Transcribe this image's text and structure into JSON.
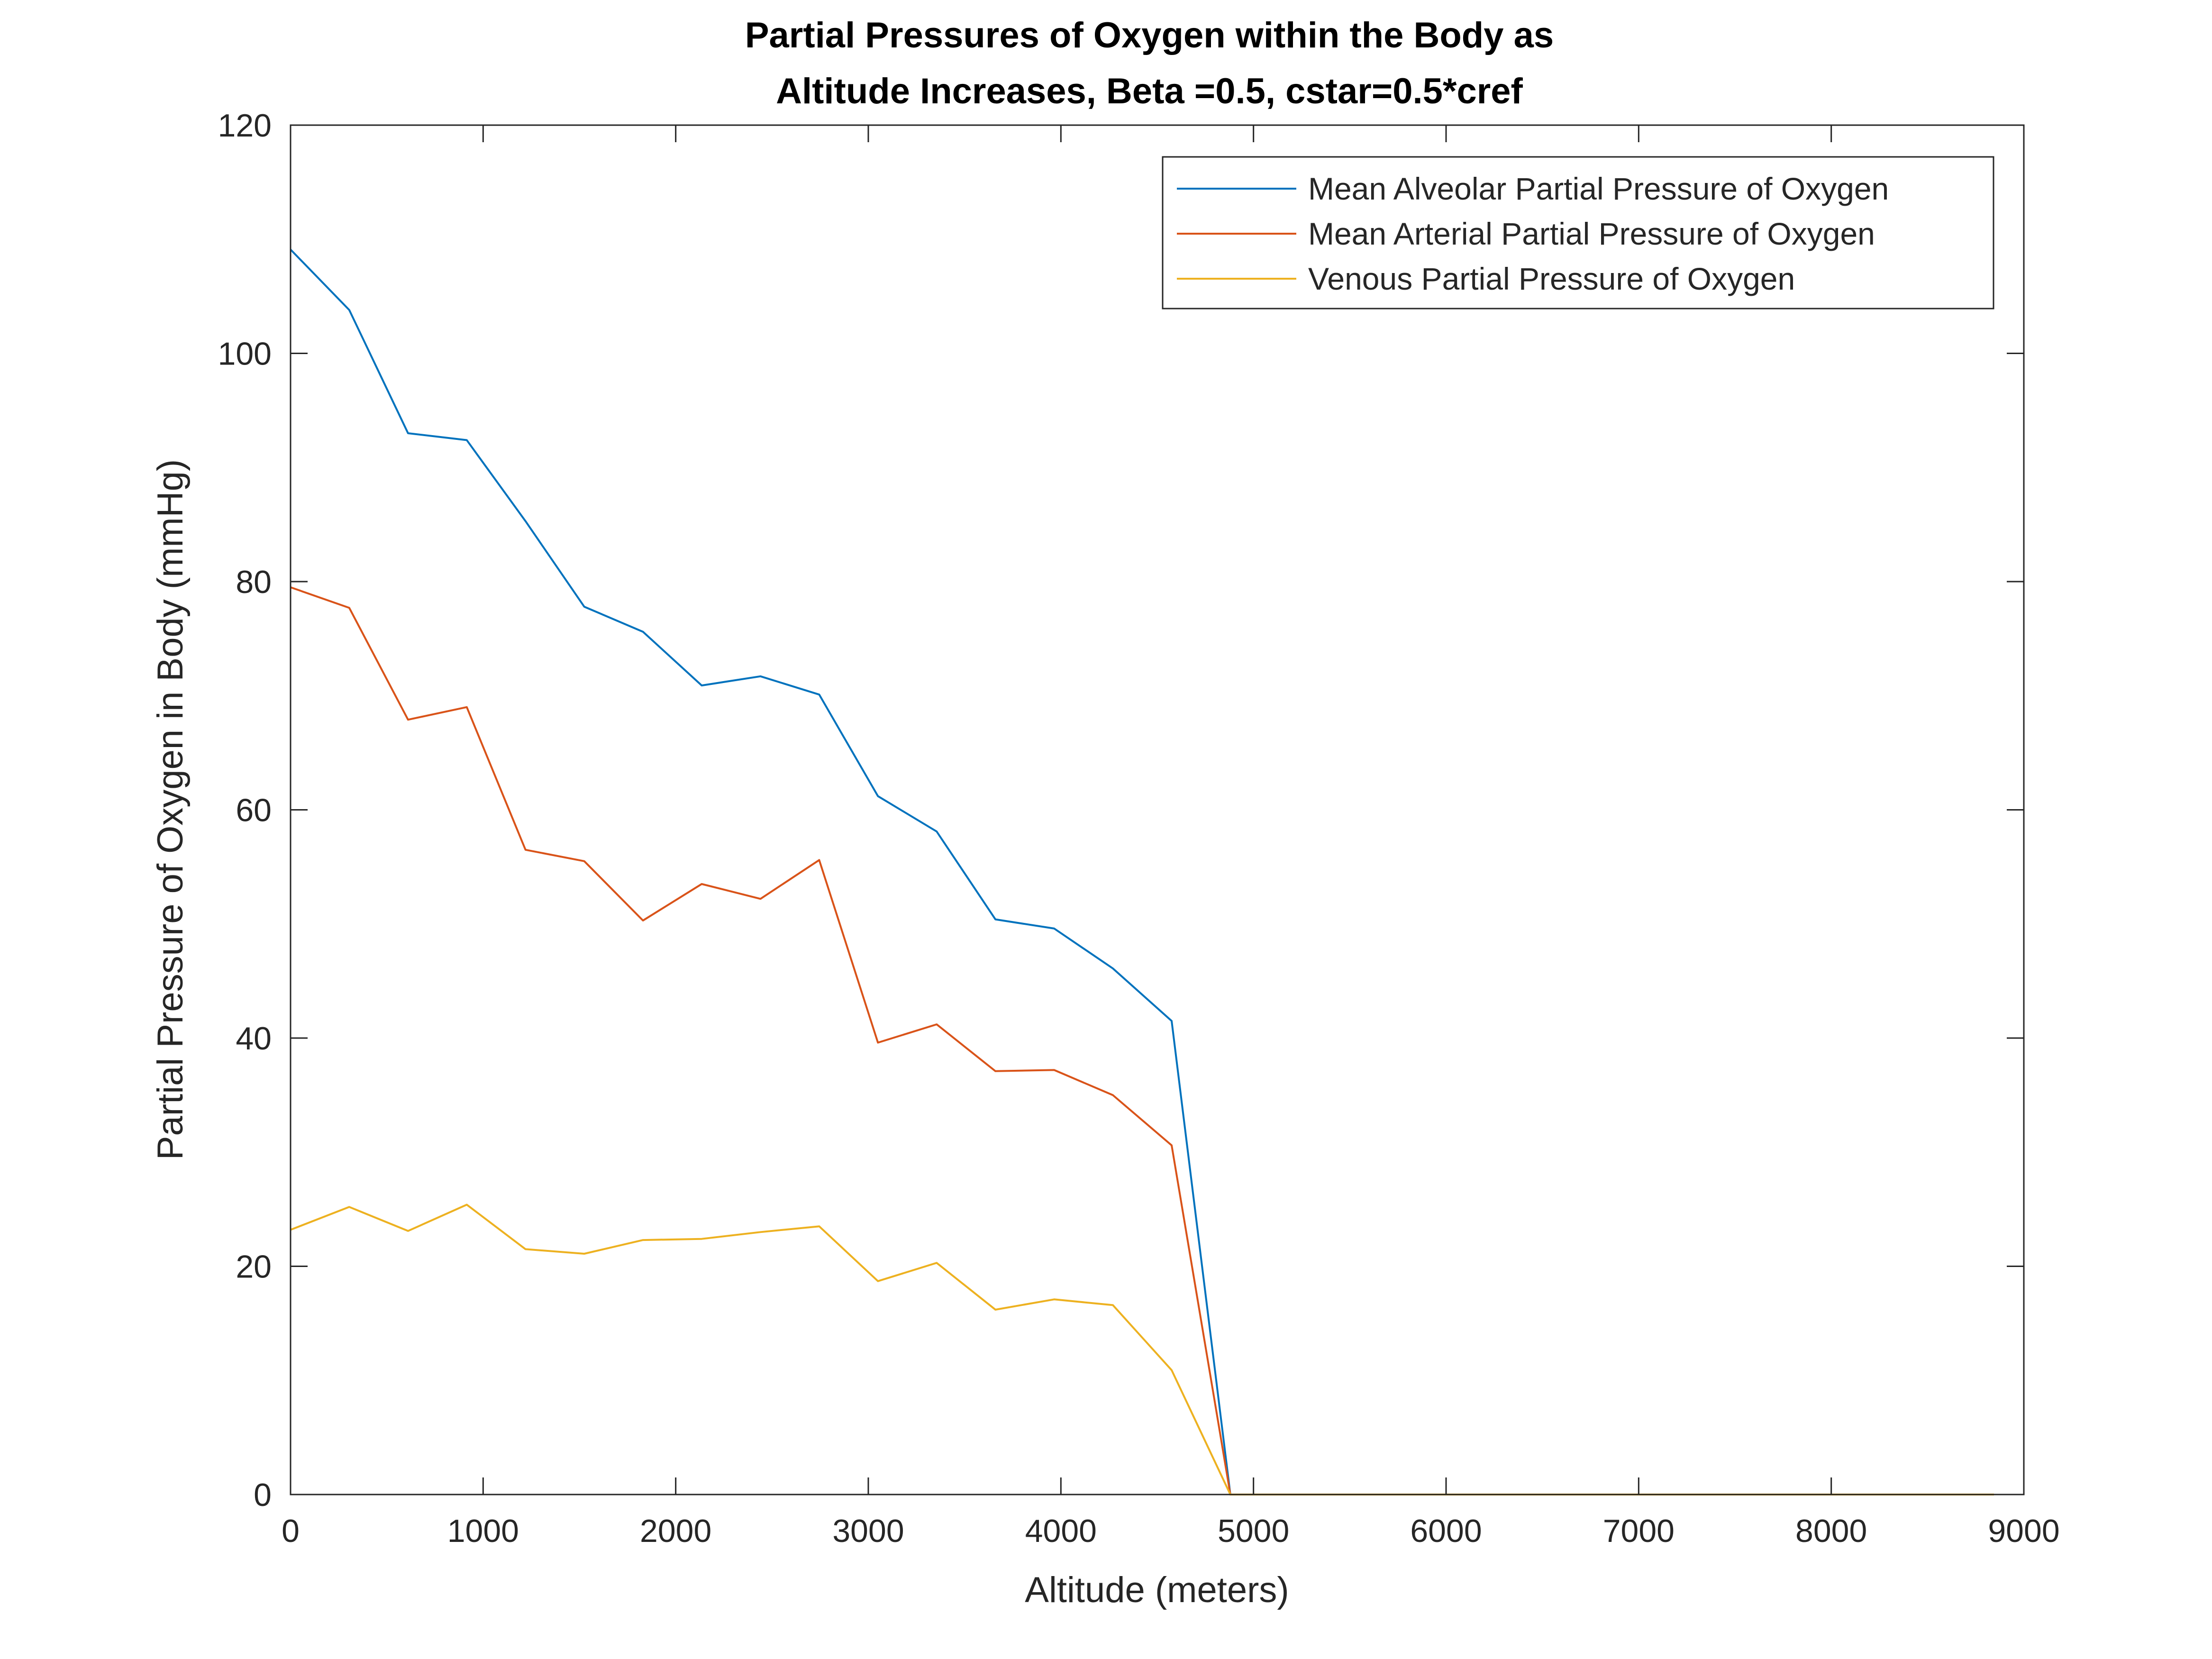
{
  "chart_data": {
    "type": "line",
    "title": [
      "Partial Pressures of Oxygen within the Body as",
      "Altitude Increases, Beta =0.5, cstar=0.5*cref"
    ],
    "xlabel": "Altitude (meters)",
    "ylabel": "Partial Pressure of Oxygen in Body (mmHg)",
    "xlim": [
      0,
      9000
    ],
    "ylim": [
      0,
      120
    ],
    "xticks": [
      0,
      1000,
      2000,
      3000,
      4000,
      5000,
      6000,
      7000,
      8000,
      9000
    ],
    "yticks": [
      0,
      20,
      40,
      60,
      80,
      100,
      120
    ],
    "grid": false,
    "legend_position": "top-right",
    "x": [
      0,
      305,
      610,
      915,
      1220,
      1525,
      1830,
      2135,
      2440,
      2745,
      3050,
      3355,
      3660,
      3965,
      4270,
      4575,
      4880,
      5185,
      5490,
      5795,
      6100,
      6405,
      6710,
      7015,
      7320,
      7625,
      7930,
      8235,
      8540,
      8845
    ],
    "series": [
      {
        "name": "Mean Alveolar Partial Pressure of Oxygen",
        "color": "#0072BD",
        "values": [
          109.1,
          103.8,
          93.0,
          92.4,
          85.3,
          77.8,
          75.6,
          70.9,
          71.7,
          70.1,
          61.2,
          58.1,
          50.4,
          49.6,
          46.1,
          41.5,
          0,
          0,
          0,
          0,
          0,
          0,
          0,
          0,
          0,
          0,
          0,
          0,
          0,
          0
        ]
      },
      {
        "name": "Mean Arterial Partial Pressure of Oxygen",
        "color": "#D95319",
        "values": [
          79.5,
          77.7,
          67.9,
          69.0,
          56.5,
          55.5,
          50.3,
          53.5,
          52.2,
          55.6,
          39.6,
          41.2,
          37.1,
          37.2,
          35.0,
          30.6,
          0,
          0,
          0,
          0,
          0,
          0,
          0,
          0,
          0,
          0,
          0,
          0,
          0,
          0
        ]
      },
      {
        "name": "Venous Partial Pressure of Oxygen",
        "color": "#EDB120",
        "values": [
          23.2,
          25.2,
          23.1,
          25.4,
          21.5,
          21.1,
          22.3,
          22.4,
          23.0,
          23.5,
          18.7,
          20.3,
          16.2,
          17.1,
          16.6,
          10.9,
          0,
          0,
          0,
          0,
          0,
          0,
          0,
          0,
          0,
          0,
          0,
          0,
          0,
          0
        ]
      }
    ]
  }
}
